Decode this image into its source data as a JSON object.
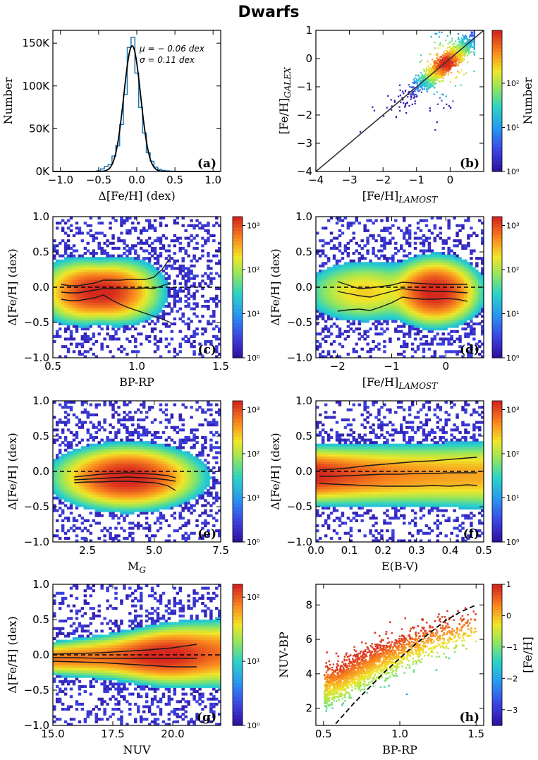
{
  "title": "Dwarfs",
  "colors": {
    "curve": "#000000",
    "hist": "#1f77b4",
    "line_black": "#1a1a1a"
  },
  "chart_data": [
    {
      "id": "a",
      "type": "histogram",
      "panel_label": "(a)",
      "xlabel": "Δ[Fe/H] (dex)",
      "ylabel": "Number",
      "xlim": [
        -1.1,
        1.1
      ],
      "ylim": [
        0,
        165000
      ],
      "xticks": [
        "−1.0",
        "−0.5",
        "0.0",
        "0.5",
        "1.0"
      ],
      "yticks": [
        "0K",
        "50K",
        "100K",
        "150K"
      ],
      "annotation_mu": "μ = − 0.06 dex",
      "annotation_sigma": "σ = 0.11 dex",
      "bins_x": [
        -0.55,
        -0.5,
        -0.45,
        -0.4,
        -0.35,
        -0.3,
        -0.25,
        -0.2,
        -0.15,
        -0.1,
        -0.05,
        0.0,
        0.05,
        0.1,
        0.15,
        0.2,
        0.25,
        0.3,
        0.35,
        0.4,
        0.45,
        0.5
      ],
      "counts": [
        200,
        800,
        3000,
        6000,
        8000,
        18000,
        30000,
        55000,
        90000,
        145000,
        157000,
        115000,
        75000,
        45000,
        22000,
        12000,
        5000,
        2500,
        1200,
        700,
        300,
        100
      ],
      "fit_mu": -0.06,
      "fit_sigma": 0.11,
      "fit_peak": 147000
    },
    {
      "id": "b",
      "type": "heatmap",
      "panel_label": "(b)",
      "xlabel": "[Fe/H]LAMOST",
      "ylabel": "[Fe/H]GALEX",
      "xlim": [
        -4,
        1
      ],
      "ylim": [
        -4,
        1
      ],
      "xticks": [
        "−4",
        "−3",
        "−2",
        "−1",
        "0"
      ],
      "yticks": [
        "−4",
        "−3",
        "−2",
        "−1",
        "0",
        "1"
      ],
      "colorbar_label": "Number",
      "colorbar_ticks": [
        "10⁰",
        "10¹",
        "10²"
      ],
      "colorbar_range_log": [
        0,
        3.2
      ],
      "one_to_one_line": [
        [
          -4,
          -4
        ],
        [
          1,
          1
        ]
      ]
    },
    {
      "id": "c",
      "type": "heatmap",
      "panel_label": "(c)",
      "xlabel": "BP-RP",
      "ylabel": "Δ[Fe/H] (dex)",
      "xlim": [
        0.5,
        1.5
      ],
      "ylim": [
        -1,
        1
      ],
      "xticks": [
        "0.5",
        "1.0",
        "1.5"
      ],
      "yticks": [
        "−1.0",
        "−0.5",
        "0.0",
        "0.5",
        "1.0"
      ],
      "colorbar_ticks": [
        "10⁰",
        "10¹",
        "10²",
        "10³"
      ],
      "lines": [
        {
          "x": [
            0.55,
            0.6,
            0.65,
            0.7,
            0.75,
            0.8,
            0.85,
            0.9,
            0.95,
            1.0,
            1.05,
            1.1,
            1.15,
            1.2
          ],
          "y": [
            0.04,
            0.02,
            0.02,
            0.04,
            0.06,
            0.1,
            0.1,
            0.1,
            0.11,
            0.11,
            0.11,
            0.14,
            0.25,
            0.42
          ]
        },
        {
          "x": [
            0.55,
            0.6,
            0.65,
            0.7,
            0.75,
            0.8,
            0.85,
            0.9,
            0.95,
            1.0,
            1.05,
            1.1,
            1.15,
            1.2
          ],
          "y": [
            -0.07,
            -0.08,
            -0.08,
            -0.06,
            -0.04,
            -0.02,
            -0.02,
            -0.02,
            -0.02,
            -0.02,
            -0.01,
            -0.02,
            0.02,
            0.06
          ]
        },
        {
          "x": [
            0.55,
            0.6,
            0.65,
            0.7,
            0.75,
            0.8,
            0.85,
            0.9,
            0.95,
            1.0,
            1.05,
            1.1,
            1.15,
            1.2
          ],
          "y": [
            -0.17,
            -0.19,
            -0.19,
            -0.17,
            -0.15,
            -0.11,
            -0.18,
            -0.24,
            -0.29,
            -0.33,
            -0.37,
            -0.41,
            -0.45,
            -0.5
          ]
        }
      ]
    },
    {
      "id": "d",
      "type": "heatmap",
      "panel_label": "(d)",
      "xlabel": "[Fe/H]LAMOST",
      "ylabel": "Δ[Fe/H] (dex)",
      "xlim": [
        -2.4,
        0.7
      ],
      "ylim": [
        -1,
        1
      ],
      "xticks": [
        "−2",
        "−1",
        "0"
      ],
      "yticks": [
        "−1.0",
        "−0.5",
        "0.0",
        "0.5",
        "1.0"
      ],
      "colorbar_ticks": [
        "10⁰",
        "10¹",
        "10²",
        "10³"
      ],
      "lines": [
        {
          "x": [
            -2.0,
            -1.8,
            -1.6,
            -1.4,
            -1.2,
            -1.0,
            -0.8,
            -0.6,
            -0.4,
            -0.2,
            0.0,
            0.2,
            0.4
          ],
          "y": [
            0.08,
            0.03,
            -0.02,
            -0.01,
            0.01,
            0.03,
            0.07,
            0.06,
            0.05,
            0.04,
            0.04,
            0.04,
            0.04
          ]
        },
        {
          "x": [
            -2.0,
            -1.8,
            -1.6,
            -1.4,
            -1.2,
            -1.0,
            -0.8,
            -0.6,
            -0.4,
            -0.2,
            0.0,
            0.2,
            0.4
          ],
          "y": [
            -0.06,
            -0.09,
            -0.12,
            -0.14,
            -0.1,
            -0.06,
            -0.02,
            -0.04,
            -0.05,
            -0.06,
            -0.06,
            -0.07,
            -0.08
          ]
        },
        {
          "x": [
            -2.0,
            -1.8,
            -1.6,
            -1.4,
            -1.2,
            -1.0,
            -0.8,
            -0.6,
            -0.4,
            -0.2,
            0.0,
            0.2,
            0.4
          ],
          "y": [
            -0.34,
            -0.32,
            -0.31,
            -0.33,
            -0.28,
            -0.22,
            -0.14,
            -0.16,
            -0.17,
            -0.17,
            -0.16,
            -0.17,
            -0.2
          ]
        }
      ]
    },
    {
      "id": "e",
      "type": "heatmap",
      "panel_label": "(e)",
      "xlabel": "MG",
      "ylabel": "Δ[Fe/H] (dex)",
      "xlim": [
        1.2,
        7.5
      ],
      "ylim": [
        -1,
        1
      ],
      "xticks": [
        "2.5",
        "5.0",
        "7.5"
      ],
      "yticks": [
        "−1.0",
        "−0.5",
        "0.0",
        "0.5",
        "1.0"
      ],
      "colorbar_ticks": [
        "10⁰",
        "10¹",
        "10²",
        "10³"
      ],
      "lines": [
        {
          "x": [
            2.0,
            2.5,
            3.0,
            3.5,
            4.0,
            4.5,
            5.0,
            5.5,
            5.8
          ],
          "y": [
            -0.08,
            -0.06,
            -0.04,
            -0.03,
            -0.02,
            -0.03,
            -0.04,
            -0.06,
            -0.09
          ]
        },
        {
          "x": [
            2.0,
            2.5,
            3.0,
            3.5,
            4.0,
            4.5,
            5.0,
            5.5,
            5.8
          ],
          "y": [
            -0.12,
            -0.11,
            -0.1,
            -0.09,
            -0.08,
            -0.09,
            -0.1,
            -0.12,
            -0.14
          ]
        },
        {
          "x": [
            2.0,
            2.5,
            3.0,
            3.5,
            4.0,
            4.5,
            5.0,
            5.5,
            5.8
          ],
          "y": [
            -0.16,
            -0.15,
            -0.15,
            -0.14,
            -0.14,
            -0.15,
            -0.16,
            -0.2,
            -0.27
          ]
        }
      ]
    },
    {
      "id": "f",
      "type": "heatmap",
      "panel_label": "(f)",
      "xlabel": "E(B-V)",
      "ylabel": "Δ[Fe/H] (dex)",
      "xlim": [
        0,
        0.5
      ],
      "ylim": [
        -1,
        1
      ],
      "xticks": [
        "0.0",
        "0.1",
        "0.2",
        "0.3",
        "0.4",
        "0.5"
      ],
      "yticks": [
        "−1.0",
        "−0.5",
        "0.0",
        "0.5",
        "1.0"
      ],
      "colorbar_ticks": [
        "10⁰",
        "10¹",
        "10²",
        "10³"
      ],
      "lines": [
        {
          "x": [
            0.01,
            0.05,
            0.1,
            0.15,
            0.2,
            0.25,
            0.3,
            0.35,
            0.4,
            0.45,
            0.48
          ],
          "y": [
            0.02,
            0.03,
            0.05,
            0.08,
            0.1,
            0.12,
            0.14,
            0.15,
            0.17,
            0.19,
            0.2
          ]
        },
        {
          "x": [
            0.01,
            0.05,
            0.1,
            0.15,
            0.2,
            0.25,
            0.3,
            0.35,
            0.4,
            0.45,
            0.48
          ],
          "y": [
            -0.07,
            -0.07,
            -0.06,
            -0.05,
            -0.04,
            -0.04,
            -0.03,
            -0.03,
            -0.02,
            -0.02,
            -0.02
          ]
        },
        {
          "x": [
            0.01,
            0.05,
            0.1,
            0.15,
            0.2,
            0.25,
            0.3,
            0.35,
            0.4,
            0.45,
            0.48
          ],
          "y": [
            -0.17,
            -0.18,
            -0.19,
            -0.2,
            -0.21,
            -0.21,
            -0.21,
            -0.2,
            -0.21,
            -0.19,
            -0.2
          ]
        }
      ]
    },
    {
      "id": "g",
      "type": "heatmap",
      "panel_label": "(g)",
      "xlabel": "NUV",
      "ylabel": "Δ[Fe/H] (dex)",
      "xlim": [
        15,
        22
      ],
      "ylim": [
        -1,
        1
      ],
      "xticks": [
        "15.0",
        "17.5",
        "20.0"
      ],
      "yticks": [
        "−1.0",
        "−0.5",
        "0.0",
        "0.5",
        "1.0"
      ],
      "colorbar_ticks": [
        "10⁰",
        "10¹",
        "10²"
      ],
      "lines": [
        {
          "x": [
            15.0,
            16.0,
            17.0,
            18.0,
            19.0,
            20.0,
            21.0
          ],
          "y": [
            0.01,
            0.02,
            0.03,
            0.05,
            0.07,
            0.1,
            0.15
          ]
        },
        {
          "x": [
            15.0,
            16.0,
            17.0,
            18.0,
            19.0,
            20.0,
            21.0
          ],
          "y": [
            -0.04,
            -0.04,
            -0.05,
            -0.05,
            -0.05,
            -0.05,
            -0.05
          ]
        },
        {
          "x": [
            15.0,
            16.0,
            17.0,
            18.0,
            19.0,
            20.0,
            21.0
          ],
          "y": [
            -0.09,
            -0.1,
            -0.11,
            -0.13,
            -0.15,
            -0.17,
            -0.17
          ]
        }
      ]
    },
    {
      "id": "h",
      "type": "scatter",
      "panel_label": "(h)",
      "xlabel": "BP-RP",
      "ylabel": "NUV-BP",
      "xlim": [
        0.45,
        1.55
      ],
      "ylim": [
        1,
        9.2
      ],
      "xticks": [
        "0.5",
        "1.0",
        "1.5"
      ],
      "yticks": [
        "2",
        "4",
        "6",
        "8"
      ],
      "colorbar_label": "[Fe/H]",
      "colorbar_ticks": [
        "1",
        "0",
        "−1",
        "−2",
        "−3"
      ],
      "colorbar_range": [
        -3.5,
        1
      ],
      "boundary_line": {
        "x": [
          0.58,
          0.7,
          0.8,
          0.9,
          1.0,
          1.1,
          1.2,
          1.3,
          1.4,
          1.5
        ],
        "y": [
          1.1,
          2.3,
          3.2,
          4.1,
          4.9,
          5.7,
          6.4,
          7.1,
          7.6,
          8.0
        ]
      }
    }
  ]
}
